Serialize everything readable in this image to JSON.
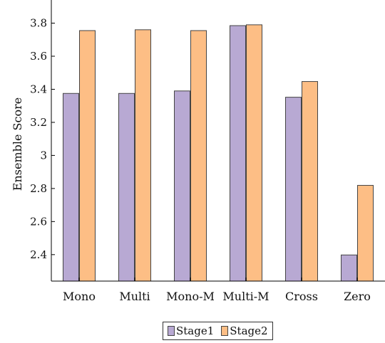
{
  "chart_data": {
    "type": "bar",
    "title": "",
    "xlabel": "",
    "ylabel": "Ensemble Score",
    "categories": [
      "Mono",
      "Multi",
      "Mono-M",
      "Multi-M",
      "Cross",
      "Zero"
    ],
    "series": [
      {
        "name": "Stage1",
        "values": [
          3.375,
          3.375,
          3.39,
          3.785,
          3.352,
          2.398
        ],
        "color": "#b8a9d3"
      },
      {
        "name": "Stage2",
        "values": [
          3.755,
          3.76,
          3.755,
          3.79,
          3.447,
          2.819
        ],
        "color": "#fdbe85"
      }
    ],
    "ylim": [
      2.24,
      3.94
    ],
    "yticks": [
      2.4,
      2.6,
      2.8,
      3,
      3.2,
      3.4,
      3.6,
      3.8
    ],
    "grid": false,
    "legend_position": "bottom-center"
  }
}
